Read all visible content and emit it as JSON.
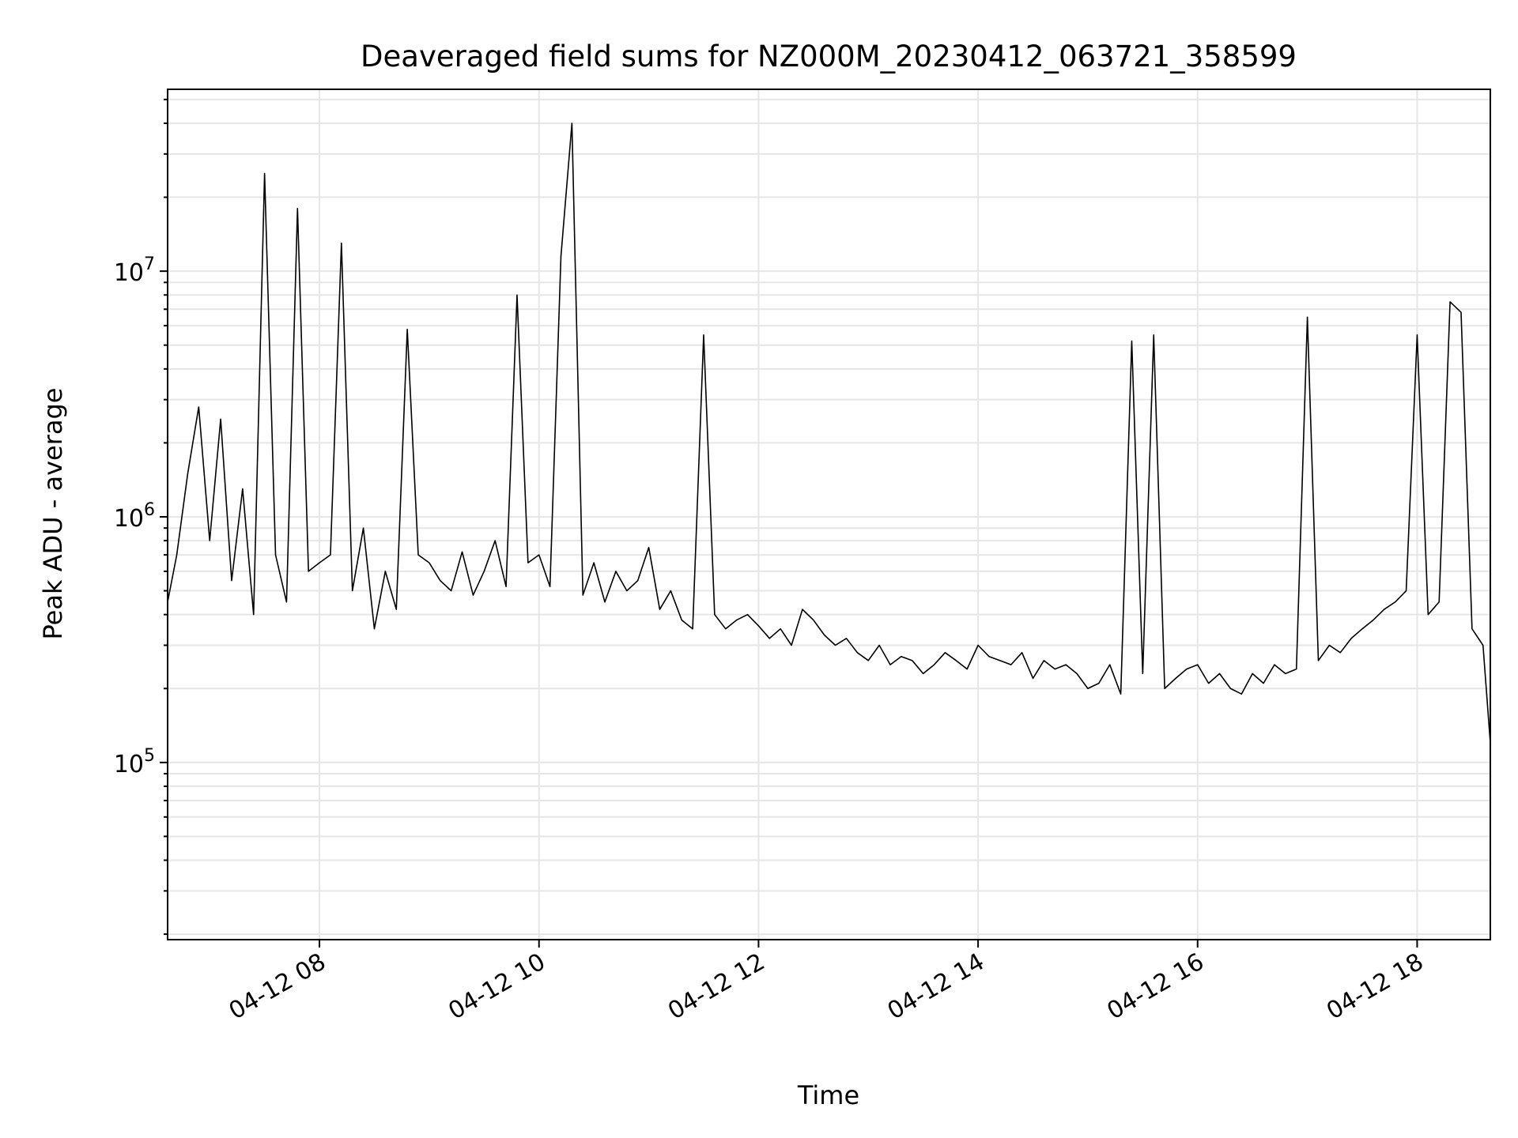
{
  "chart_data": {
    "type": "line",
    "title": "Deaveraged field sums for NZ000M_20230412_063721_358599",
    "xlabel": "Time",
    "ylabel": "Peak ADU - average",
    "yscale": "log",
    "xlim": [
      "2023-04-12 06:37",
      "2023-04-12 18:40"
    ],
    "ylim": [
      19000,
      55000000
    ],
    "grid": true,
    "x_ticks": [
      {
        "value": "2023-04-12 08:00",
        "label": "04-12 08"
      },
      {
        "value": "2023-04-12 10:00",
        "label": "04-12 10"
      },
      {
        "value": "2023-04-12 12:00",
        "label": "04-12 12"
      },
      {
        "value": "2023-04-12 14:00",
        "label": "04-12 14"
      },
      {
        "value": "2023-04-12 16:00",
        "label": "04-12 16"
      },
      {
        "value": "2023-04-12 18:00",
        "label": "04-12 18"
      }
    ],
    "y_ticks": [
      {
        "value": 100000,
        "base": "10",
        "exp": "5"
      },
      {
        "value": 1000000,
        "base": "10",
        "exp": "6"
      },
      {
        "value": 10000000,
        "base": "10",
        "exp": "7"
      }
    ],
    "series": [
      {
        "color": "#000000",
        "x": [
          "2023-04-12 06:37",
          "2023-04-12 06:42",
          "2023-04-12 06:48",
          "2023-04-12 06:54",
          "2023-04-12 07:00",
          "2023-04-12 07:06",
          "2023-04-12 07:12",
          "2023-04-12 07:18",
          "2023-04-12 07:24",
          "2023-04-12 07:30",
          "2023-04-12 07:36",
          "2023-04-12 07:42",
          "2023-04-12 07:48",
          "2023-04-12 07:54",
          "2023-04-12 08:00",
          "2023-04-12 08:06",
          "2023-04-12 08:12",
          "2023-04-12 08:18",
          "2023-04-12 08:24",
          "2023-04-12 08:30",
          "2023-04-12 08:36",
          "2023-04-12 08:42",
          "2023-04-12 08:48",
          "2023-04-12 08:54",
          "2023-04-12 09:00",
          "2023-04-12 09:06",
          "2023-04-12 09:12",
          "2023-04-12 09:18",
          "2023-04-12 09:24",
          "2023-04-12 09:30",
          "2023-04-12 09:36",
          "2023-04-12 09:42",
          "2023-04-12 09:48",
          "2023-04-12 09:54",
          "2023-04-12 10:00",
          "2023-04-12 10:06",
          "2023-04-12 10:12",
          "2023-04-12 10:18",
          "2023-04-12 10:24",
          "2023-04-12 10:30",
          "2023-04-12 10:36",
          "2023-04-12 10:42",
          "2023-04-12 10:48",
          "2023-04-12 10:54",
          "2023-04-12 11:00",
          "2023-04-12 11:06",
          "2023-04-12 11:12",
          "2023-04-12 11:18",
          "2023-04-12 11:24",
          "2023-04-12 11:30",
          "2023-04-12 11:36",
          "2023-04-12 11:42",
          "2023-04-12 11:48",
          "2023-04-12 11:54",
          "2023-04-12 12:00",
          "2023-04-12 12:06",
          "2023-04-12 12:12",
          "2023-04-12 12:18",
          "2023-04-12 12:24",
          "2023-04-12 12:30",
          "2023-04-12 12:36",
          "2023-04-12 12:42",
          "2023-04-12 12:48",
          "2023-04-12 12:54",
          "2023-04-12 13:00",
          "2023-04-12 13:06",
          "2023-04-12 13:12",
          "2023-04-12 13:18",
          "2023-04-12 13:24",
          "2023-04-12 13:30",
          "2023-04-12 13:36",
          "2023-04-12 13:42",
          "2023-04-12 13:48",
          "2023-04-12 13:54",
          "2023-04-12 14:00",
          "2023-04-12 14:06",
          "2023-04-12 14:12",
          "2023-04-12 14:18",
          "2023-04-12 14:24",
          "2023-04-12 14:30",
          "2023-04-12 14:36",
          "2023-04-12 14:42",
          "2023-04-12 14:48",
          "2023-04-12 14:54",
          "2023-04-12 15:00",
          "2023-04-12 15:06",
          "2023-04-12 15:12",
          "2023-04-12 15:18",
          "2023-04-12 15:24",
          "2023-04-12 15:30",
          "2023-04-12 15:36",
          "2023-04-12 15:42",
          "2023-04-12 15:48",
          "2023-04-12 15:54",
          "2023-04-12 16:00",
          "2023-04-12 16:06",
          "2023-04-12 16:12",
          "2023-04-12 16:18",
          "2023-04-12 16:24",
          "2023-04-12 16:30",
          "2023-04-12 16:36",
          "2023-04-12 16:42",
          "2023-04-12 16:48",
          "2023-04-12 16:54",
          "2023-04-12 17:00",
          "2023-04-12 17:06",
          "2023-04-12 17:12",
          "2023-04-12 17:18",
          "2023-04-12 17:24",
          "2023-04-12 17:30",
          "2023-04-12 17:36",
          "2023-04-12 17:42",
          "2023-04-12 17:48",
          "2023-04-12 17:54",
          "2023-04-12 18:00",
          "2023-04-12 18:06",
          "2023-04-12 18:12",
          "2023-04-12 18:18",
          "2023-04-12 18:24",
          "2023-04-12 18:30",
          "2023-04-12 18:36",
          "2023-04-12 18:40"
        ],
        "y": [
          450000,
          700000,
          1500000,
          2800000,
          800000,
          2500000,
          550000,
          1300000,
          400000,
          25000000,
          700000,
          450000,
          18000000,
          600000,
          650000,
          700000,
          13000000,
          500000,
          900000,
          350000,
          600000,
          420000,
          5800000,
          700000,
          650000,
          550000,
          500000,
          720000,
          480000,
          600000,
          800000,
          520000,
          8000000,
          650000,
          700000,
          520000,
          11500000,
          40000000,
          480000,
          650000,
          450000,
          600000,
          500000,
          550000,
          750000,
          420000,
          500000,
          380000,
          350000,
          5500000,
          400000,
          350000,
          380000,
          400000,
          360000,
          320000,
          350000,
          300000,
          420000,
          380000,
          330000,
          300000,
          320000,
          280000,
          260000,
          300000,
          250000,
          270000,
          260000,
          230000,
          250000,
          280000,
          260000,
          240000,
          300000,
          270000,
          260000,
          250000,
          280000,
          220000,
          260000,
          240000,
          250000,
          230000,
          200000,
          210000,
          250000,
          190000,
          5200000,
          230000,
          5500000,
          200000,
          220000,
          240000,
          250000,
          210000,
          230000,
          200000,
          190000,
          230000,
          210000,
          250000,
          230000,
          240000,
          6500000,
          260000,
          300000,
          280000,
          320000,
          350000,
          380000,
          420000,
          450000,
          500000,
          5500000,
          400000,
          450000,
          7500000,
          6800000,
          350000,
          300000,
          120000
        ]
      }
    ]
  }
}
